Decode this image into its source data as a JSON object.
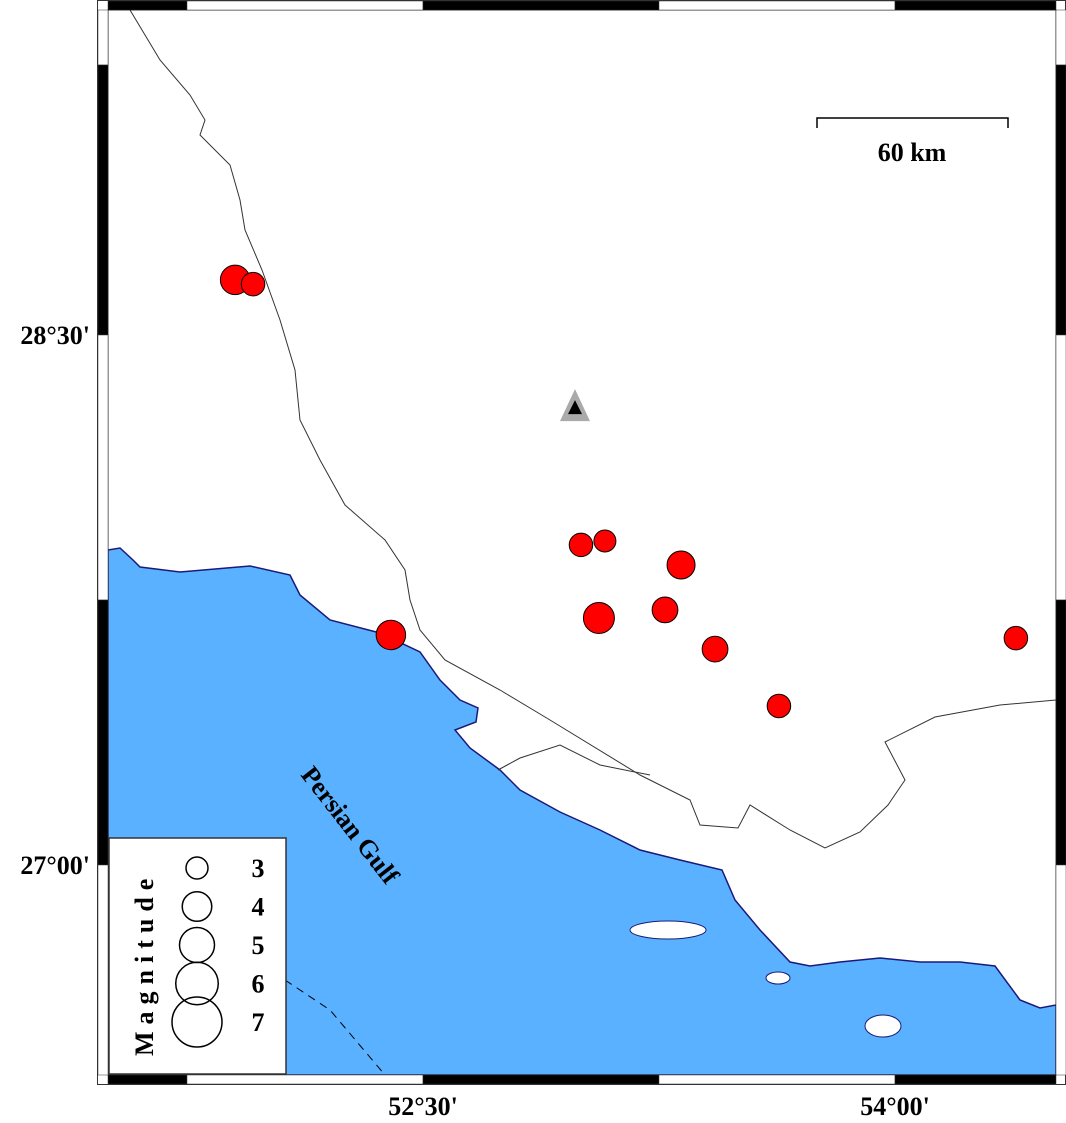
{
  "map": {
    "water_color": "#5ab1ff",
    "event_color": "#ff0000",
    "station_color": "#aaaaaa",
    "lon_ticks": [
      {
        "value": 52.5,
        "label": "52°30'"
      },
      {
        "value": 54.0,
        "label": "54°00'"
      }
    ],
    "lat_ticks": [
      {
        "value": 28.5,
        "label": "28°30'"
      },
      {
        "value": 27.0,
        "label": "27°00'"
      }
    ],
    "sea_label": "Persian Gulf",
    "scale_bar": {
      "label": "60 km"
    },
    "station": {
      "lon": 52.983,
      "lat": 28.296,
      "icon": "triangle-icon"
    },
    "events": [
      {
        "lon": 51.903,
        "lat": 28.656,
        "mag": 4.0
      },
      {
        "lon": 51.96,
        "lat": 28.644,
        "mag": 3.2
      },
      {
        "lon": 52.398,
        "lat": 27.651,
        "mag": 4.0
      },
      {
        "lon": 53.002,
        "lat": 27.906,
        "mag": 3.2
      },
      {
        "lon": 53.078,
        "lat": 27.917,
        "mag": 3.0
      },
      {
        "lon": 53.32,
        "lat": 27.849,
        "mag": 3.8
      },
      {
        "lon": 53.059,
        "lat": 27.699,
        "mag": 4.2
      },
      {
        "lon": 53.269,
        "lat": 27.722,
        "mag": 3.5
      },
      {
        "lon": 53.428,
        "lat": 27.611,
        "mag": 3.5
      },
      {
        "lon": 53.631,
        "lat": 27.45,
        "mag": 3.2
      },
      {
        "lon": 54.384,
        "lat": 27.642,
        "mag": 3.2
      }
    ]
  },
  "legend": {
    "title": "Magnitude",
    "items": [
      {
        "mag": 3,
        "label": "3"
      },
      {
        "mag": 4,
        "label": "4"
      },
      {
        "mag": 5,
        "label": "5"
      },
      {
        "mag": 6,
        "label": "6"
      },
      {
        "mag": 7,
        "label": "7"
      }
    ]
  }
}
